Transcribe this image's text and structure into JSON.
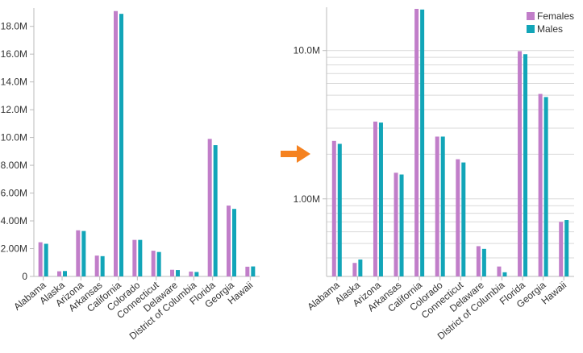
{
  "colors": {
    "females": "#c17ec9",
    "males": "#12a5b8",
    "arrow": "#f58220"
  },
  "arrow_icon": "right-arrow-icon",
  "chart_data": [
    {
      "type": "bar",
      "scale": "linear",
      "categories": [
        "Alabama",
        "Alaska",
        "Arizona",
        "Arkansas",
        "California",
        "Colorado",
        "Connecticut",
        "Delaware",
        "District of Columbia",
        "Florida",
        "Georgia",
        "Hawaii"
      ],
      "series": [
        {
          "name": "Females",
          "values": [
            2460000,
            370000,
            3320000,
            1500000,
            19100000,
            2630000,
            1850000,
            480000,
            350000,
            9900000,
            5100000,
            700000
          ]
        },
        {
          "name": "Males",
          "values": [
            2350000,
            390000,
            3270000,
            1460000,
            18900000,
            2630000,
            1760000,
            460000,
            320000,
            9450000,
            4860000,
            720000
          ]
        }
      ],
      "ylim": [
        0,
        19200000
      ],
      "yticks": [
        0,
        2000000,
        4000000,
        6000000,
        8000000,
        10000000,
        12000000,
        14000000,
        16000000,
        18000000
      ],
      "ytick_labels": [
        "0",
        "2.00M",
        "4.00M",
        "6.00M",
        "8.00M",
        "10.0M",
        "12.0M",
        "14.0M",
        "16.0M",
        "18.0M"
      ],
      "grid": false,
      "legend": "none"
    },
    {
      "type": "bar",
      "scale": "log",
      "categories": [
        "Alabama",
        "Alaska",
        "Arizona",
        "Arkansas",
        "California",
        "Colorado",
        "Connecticut",
        "Delaware",
        "District of Columbia",
        "Florida",
        "Georgia",
        "Hawaii"
      ],
      "series": [
        {
          "name": "Females",
          "values": [
            2460000,
            370000,
            3320000,
            1500000,
            19100000,
            2630000,
            1850000,
            480000,
            350000,
            9900000,
            5100000,
            700000
          ]
        },
        {
          "name": "Males",
          "values": [
            2350000,
            390000,
            3270000,
            1460000,
            18900000,
            2630000,
            1760000,
            460000,
            320000,
            9450000,
            4860000,
            720000
          ]
        }
      ],
      "ylim": [
        300000,
        19100000
      ],
      "yticks": [
        1000000,
        10000000
      ],
      "ytick_labels": [
        "1.00M",
        "10.0M"
      ],
      "grid": true,
      "legend": "top-right"
    }
  ]
}
